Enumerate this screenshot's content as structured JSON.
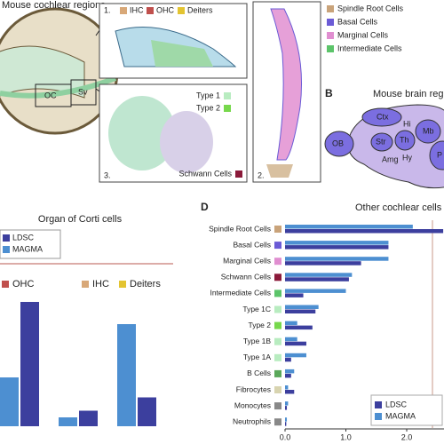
{
  "figure": {
    "panel_a": {
      "title": "Mouse cochlear regions",
      "inset_1": "1.",
      "inset_2": "2.",
      "inset_3": "3.",
      "inset_1_legend": [
        "IHC",
        "OHC",
        "Deiters"
      ],
      "oc": "OC",
      "sv": "Sv",
      "inset_3_legend": [
        "Type 1",
        "Type 2",
        "Schwann Cells"
      ],
      "legend": [
        "Spindle Root Cells",
        "Basal Cells",
        "Marginal Cells",
        "Intermediate Cells"
      ]
    },
    "panel_b": {
      "label": "B",
      "title": "Mouse brain regio",
      "regions": [
        "OB",
        "Ctx",
        "Hi",
        "Str",
        "Th",
        "Mb",
        "Amg",
        "Hy",
        "P"
      ]
    },
    "panel_d": {
      "label": "D"
    }
  },
  "chart_data": [
    {
      "type": "bar",
      "title": "Organ of Corti cells",
      "categories": [
        "OHC",
        "IHC",
        "Deiters"
      ],
      "category_colors": [
        "#c0504d",
        "#d8a878",
        "#e3c431"
      ],
      "series": [
        {
          "name": "LDSC",
          "color": "#3c3f9e",
          "values": [
            2.8,
            0.35,
            0.65
          ]
        },
        {
          "name": "MAGMA",
          "color": "#4d8fd1",
          "values": [
            1.1,
            0.2,
            2.3
          ]
        }
      ],
      "ylim": [
        0,
        3
      ]
    },
    {
      "type": "barh",
      "title": "Other cochlear cells",
      "categories": [
        "Spindle Root Cells",
        "Basal Cells",
        "Marginal Cells",
        "Schwann Cells",
        "Intermediate Cells",
        "Type 1C",
        "Type 2",
        "Type 1B",
        "Type 1A",
        "B Cells",
        "Fibrocytes",
        "Monocytes",
        "Neutrophils"
      ],
      "category_colors": [
        "#c9a37a",
        "#6b5bd6",
        "#e08ed0",
        "#8b1a3a",
        "#5cc46a",
        "#b8ecc0",
        "#77d84c",
        "#b8ecc0",
        "#b8ecc0",
        "#5aa85a",
        "#d8d4b0",
        "#888888",
        "#888888"
      ],
      "series": [
        {
          "name": "LDSC",
          "color": "#3c3f9e",
          "values": [
            2.6,
            1.7,
            1.25,
            1.05,
            0.3,
            0.5,
            0.45,
            0.35,
            0.1,
            0.1,
            0.15,
            0.03,
            0.02
          ]
        },
        {
          "name": "MAGMA",
          "color": "#4d8fd1",
          "values": [
            2.1,
            1.7,
            1.7,
            1.1,
            1.0,
            0.55,
            0.2,
            0.2,
            0.35,
            0.15,
            0.05,
            0.05,
            0.03
          ]
        }
      ],
      "xlim": [
        0,
        2.6
      ],
      "xticks": [
        {
          "value": 0,
          "label": "0.0"
        },
        {
          "value": 1,
          "label": "1.0"
        },
        {
          "value": 2,
          "label": "2.0"
        }
      ]
    }
  ]
}
